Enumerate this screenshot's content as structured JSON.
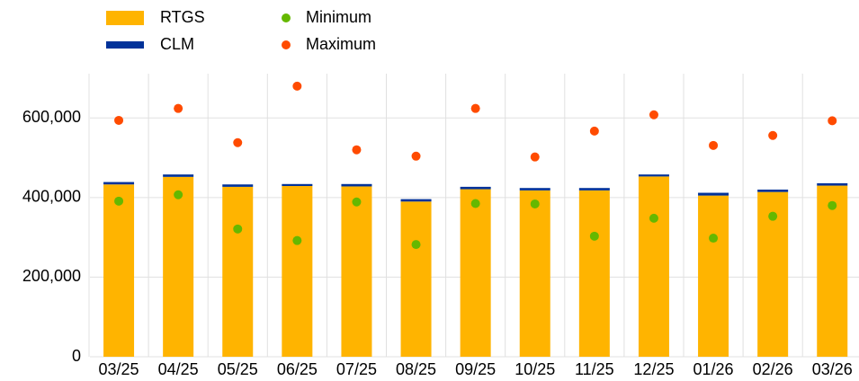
{
  "chart_data": {
    "type": "bar",
    "categories": [
      "03/25",
      "04/25",
      "05/25",
      "06/25",
      "07/25",
      "08/25",
      "09/25",
      "10/25",
      "11/25",
      "12/25",
      "01/26",
      "02/26",
      "03/26"
    ],
    "series": [
      {
        "name": "RTGS",
        "type": "bar",
        "color": "#ffb400",
        "values": [
          433000,
          452000,
          427000,
          429000,
          428000,
          390000,
          421000,
          418000,
          418000,
          453000,
          405000,
          414000,
          430000
        ]
      },
      {
        "name": "CLM",
        "type": "bar",
        "color": "#003299",
        "values": [
          6000,
          6000,
          6000,
          5000,
          6000,
          6000,
          6000,
          6000,
          6000,
          5000,
          7000,
          6000,
          6000
        ]
      },
      {
        "name": "Minimum",
        "type": "scatter",
        "color": "#65b800",
        "values": [
          391000,
          407000,
          321000,
          292000,
          389000,
          282000,
          385000,
          384000,
          303000,
          348000,
          298000,
          353000,
          380000
        ]
      },
      {
        "name": "Maximum",
        "type": "scatter",
        "color": "#ff4b00",
        "values": [
          594000,
          624000,
          538000,
          680000,
          520000,
          504000,
          624000,
          502000,
          567000,
          608000,
          531000,
          556000,
          593000
        ]
      }
    ],
    "ylim": [
      0,
      700000
    ],
    "yticks": [
      0,
      {
        "value": 200000,
        "label": "200,000"
      },
      {
        "value": 400000,
        "label": "400,000"
      },
      {
        "value": 600000,
        "label": "600,000"
      }
    ],
    "grid": true,
    "legend": "top-left"
  }
}
